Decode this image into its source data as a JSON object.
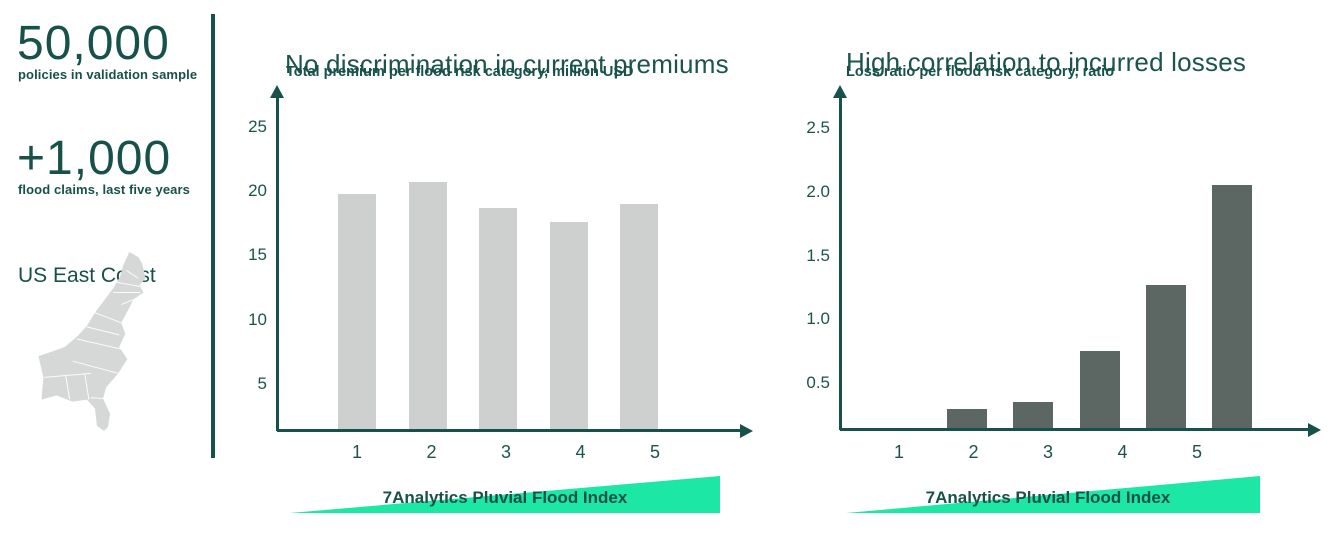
{
  "page": {
    "background": "#ffffff"
  },
  "colors": {
    "dark_teal_text": "#175149",
    "axis": "#175149",
    "bar_light_gray": "#cdd0ce",
    "bar_dark_slate": "#5c6662",
    "wedge_green": "#1de7a4",
    "map_gray": "#d6d8d7"
  },
  "sidebar": {
    "stats": [
      {
        "value": "50,000",
        "caption": "policies in validation sample"
      },
      {
        "value": "+1,000",
        "caption": "flood claims, last five years"
      }
    ],
    "region_label": "US East Coast",
    "map": "us-east-coast-silhouette"
  },
  "chart_data": [
    {
      "type": "bar",
      "title": "No discrimination in current premiums",
      "subtitle": "Total premium per flood risk category, million USD",
      "categories": [
        "1",
        "2",
        "3",
        "4",
        "5"
      ],
      "values": [
        19.8,
        20.7,
        18.7,
        17.6,
        19.0
      ],
      "yticks": [
        "5",
        "10",
        "15",
        "20",
        "25"
      ],
      "ylim": [
        0,
        27
      ],
      "xlabel": "",
      "ylabel": "Total premium, million USD",
      "grid": false,
      "legend": "none",
      "bar_color": "#cdd0ce",
      "footer_label": "7Analytics Pluvial Flood Index"
    },
    {
      "type": "bar",
      "title": "High correlation to incurred losses",
      "subtitle": "Loss ratio per flood risk category, ratio",
      "categories": [
        "1",
        "2",
        "3",
        "4",
        "5"
      ],
      "values": [
        0.3,
        0.35,
        0.75,
        1.27,
        2.05
      ],
      "yticks": [
        "0.5",
        "1.0",
        "1.5",
        "2.0",
        "2.5"
      ],
      "ylim": [
        0,
        2.7
      ],
      "xlabel": "",
      "ylabel": "Loss ratio",
      "grid": false,
      "legend": "none",
      "bar_color": "#5c6662",
      "footer_label": "7Analytics Pluvial Flood Index"
    }
  ]
}
